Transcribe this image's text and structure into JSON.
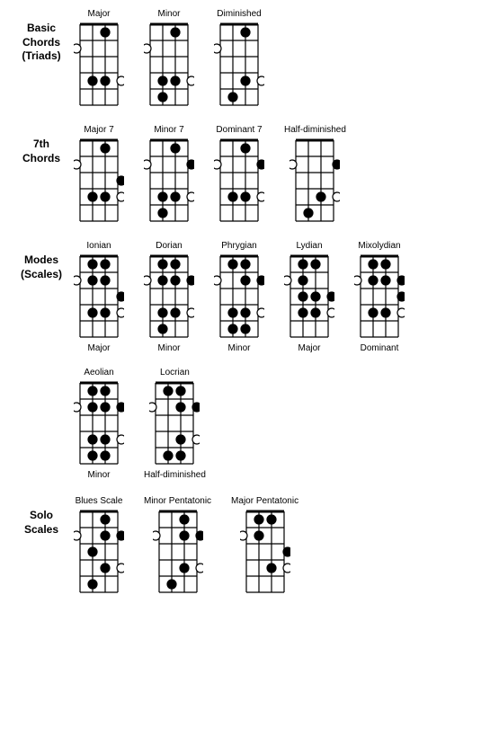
{
  "style": {
    "strings": 4,
    "frets": 5,
    "stringSpacing": 14,
    "fretSpacing": 18,
    "dotRadius": 5,
    "lineColor": "#000000",
    "lineWidth": 1.2,
    "nutWidth": 3,
    "openDotFill": "#ffffff",
    "filledDotFill": "#000000",
    "dotStroke": "#000000",
    "dotStrokeWidth": 1.2,
    "padX": 7,
    "topPad": 2
  },
  "sections": [
    {
      "label": "Basic\nChords\n(Triads)",
      "twoRow": false,
      "diagrams": [
        {
          "title": "Major",
          "sub": null,
          "dots": [
            {
              "string": 2,
              "fret": 1,
              "filled": true
            },
            {
              "string": 0,
              "fret": 2,
              "filled": false,
              "side": "left"
            },
            {
              "string": 1,
              "fret": 4,
              "filled": true
            },
            {
              "string": 2,
              "fret": 4,
              "filled": true
            },
            {
              "string": 3,
              "fret": 4,
              "filled": false,
              "side": "right"
            }
          ]
        },
        {
          "title": "Minor",
          "sub": null,
          "dots": [
            {
              "string": 2,
              "fret": 1,
              "filled": true
            },
            {
              "string": 0,
              "fret": 2,
              "filled": false,
              "side": "left"
            },
            {
              "string": 1,
              "fret": 4,
              "filled": true
            },
            {
              "string": 2,
              "fret": 4,
              "filled": true
            },
            {
              "string": 3,
              "fret": 4,
              "filled": false,
              "side": "right"
            },
            {
              "string": 1,
              "fret": 5,
              "filled": true
            }
          ]
        },
        {
          "title": "Diminished",
          "sub": null,
          "dots": [
            {
              "string": 2,
              "fret": 1,
              "filled": true
            },
            {
              "string": 0,
              "fret": 2,
              "filled": false,
              "side": "left"
            },
            {
              "string": 2,
              "fret": 4,
              "filled": true
            },
            {
              "string": 3,
              "fret": 4,
              "filled": false,
              "side": "right"
            },
            {
              "string": 1,
              "fret": 5,
              "filled": true
            }
          ]
        }
      ]
    },
    {
      "label": "7th\nChords",
      "twoRow": false,
      "diagrams": [
        {
          "title": "Major 7",
          "sub": null,
          "dots": [
            {
              "string": 2,
              "fret": 1,
              "filled": true
            },
            {
              "string": 0,
              "fret": 2,
              "filled": false,
              "side": "left"
            },
            {
              "string": 3,
              "fret": 3,
              "filled": true,
              "side": "right"
            },
            {
              "string": 1,
              "fret": 4,
              "filled": true
            },
            {
              "string": 2,
              "fret": 4,
              "filled": true
            },
            {
              "string": 3,
              "fret": 4,
              "filled": false,
              "side": "right"
            }
          ]
        },
        {
          "title": "Minor 7",
          "sub": null,
          "dots": [
            {
              "string": 2,
              "fret": 1,
              "filled": true
            },
            {
              "string": 0,
              "fret": 2,
              "filled": false,
              "side": "left"
            },
            {
              "string": 3,
              "fret": 2,
              "filled": true,
              "side": "right"
            },
            {
              "string": 1,
              "fret": 4,
              "filled": true
            },
            {
              "string": 2,
              "fret": 4,
              "filled": true
            },
            {
              "string": 3,
              "fret": 4,
              "filled": false,
              "side": "right"
            },
            {
              "string": 1,
              "fret": 5,
              "filled": true
            }
          ]
        },
        {
          "title": "Dominant 7",
          "sub": null,
          "dots": [
            {
              "string": 2,
              "fret": 1,
              "filled": true
            },
            {
              "string": 0,
              "fret": 2,
              "filled": false,
              "side": "left"
            },
            {
              "string": 3,
              "fret": 2,
              "filled": true,
              "side": "right"
            },
            {
              "string": 1,
              "fret": 4,
              "filled": true
            },
            {
              "string": 2,
              "fret": 4,
              "filled": true
            },
            {
              "string": 3,
              "fret": 4,
              "filled": false,
              "side": "right"
            }
          ]
        },
        {
          "title": "Half-diminished",
          "sub": null,
          "dots": [
            {
              "string": 0,
              "fret": 2,
              "filled": false,
              "side": "left"
            },
            {
              "string": 3,
              "fret": 2,
              "filled": true,
              "side": "right"
            },
            {
              "string": 2,
              "fret": 4,
              "filled": true
            },
            {
              "string": 3,
              "fret": 4,
              "filled": false,
              "side": "right"
            },
            {
              "string": 1,
              "fret": 5,
              "filled": true
            }
          ]
        }
      ]
    },
    {
      "label": "Modes\n(Scales)",
      "twoRow": true,
      "diagrams": [
        {
          "title": "Ionian",
          "sub": "Major",
          "dots": [
            {
              "string": 1,
              "fret": 1,
              "filled": true
            },
            {
              "string": 2,
              "fret": 1,
              "filled": true
            },
            {
              "string": 0,
              "fret": 2,
              "filled": false,
              "side": "left"
            },
            {
              "string": 1,
              "fret": 2,
              "filled": true
            },
            {
              "string": 2,
              "fret": 2,
              "filled": true
            },
            {
              "string": 3,
              "fret": 3,
              "filled": true,
              "side": "right"
            },
            {
              "string": 1,
              "fret": 4,
              "filled": true
            },
            {
              "string": 2,
              "fret": 4,
              "filled": true
            },
            {
              "string": 3,
              "fret": 4,
              "filled": false,
              "side": "right"
            }
          ]
        },
        {
          "title": "Dorian",
          "sub": "Minor",
          "dots": [
            {
              "string": 1,
              "fret": 1,
              "filled": true
            },
            {
              "string": 2,
              "fret": 1,
              "filled": true
            },
            {
              "string": 0,
              "fret": 2,
              "filled": false,
              "side": "left"
            },
            {
              "string": 1,
              "fret": 2,
              "filled": true
            },
            {
              "string": 2,
              "fret": 2,
              "filled": true
            },
            {
              "string": 3,
              "fret": 2,
              "filled": true,
              "side": "right"
            },
            {
              "string": 1,
              "fret": 4,
              "filled": true
            },
            {
              "string": 2,
              "fret": 4,
              "filled": true
            },
            {
              "string": 3,
              "fret": 4,
              "filled": false,
              "side": "right"
            },
            {
              "string": 1,
              "fret": 5,
              "filled": true
            }
          ]
        },
        {
          "title": "Phrygian",
          "sub": "Minor",
          "dots": [
            {
              "string": 1,
              "fret": 1,
              "filled": true
            },
            {
              "string": 2,
              "fret": 1,
              "filled": true
            },
            {
              "string": 0,
              "fret": 2,
              "filled": false,
              "side": "left"
            },
            {
              "string": 2,
              "fret": 2,
              "filled": true
            },
            {
              "string": 3,
              "fret": 2,
              "filled": true,
              "side": "right"
            },
            {
              "string": 1,
              "fret": 4,
              "filled": true
            },
            {
              "string": 2,
              "fret": 4,
              "filled": true
            },
            {
              "string": 3,
              "fret": 4,
              "filled": false,
              "side": "right"
            },
            {
              "string": 1,
              "fret": 5,
              "filled": true
            },
            {
              "string": 2,
              "fret": 5,
              "filled": true
            }
          ]
        },
        {
          "title": "Lydian",
          "sub": "Major",
          "dots": [
            {
              "string": 1,
              "fret": 1,
              "filled": true
            },
            {
              "string": 2,
              "fret": 1,
              "filled": true
            },
            {
              "string": 0,
              "fret": 2,
              "filled": false,
              "side": "left"
            },
            {
              "string": 1,
              "fret": 2,
              "filled": true
            },
            {
              "string": 1,
              "fret": 3,
              "filled": true
            },
            {
              "string": 2,
              "fret": 3,
              "filled": true
            },
            {
              "string": 3,
              "fret": 3,
              "filled": true,
              "side": "right"
            },
            {
              "string": 1,
              "fret": 4,
              "filled": true
            },
            {
              "string": 2,
              "fret": 4,
              "filled": true
            },
            {
              "string": 3,
              "fret": 4,
              "filled": false,
              "side": "right"
            }
          ]
        },
        {
          "title": "Mixolydian",
          "sub": "Dominant",
          "dots": [
            {
              "string": 1,
              "fret": 1,
              "filled": true
            },
            {
              "string": 2,
              "fret": 1,
              "filled": true
            },
            {
              "string": 0,
              "fret": 2,
              "filled": false,
              "side": "left"
            },
            {
              "string": 1,
              "fret": 2,
              "filled": true
            },
            {
              "string": 2,
              "fret": 2,
              "filled": true
            },
            {
              "string": 3,
              "fret": 2,
              "filled": true,
              "side": "right"
            },
            {
              "string": 3,
              "fret": 3,
              "filled": true,
              "side": "right"
            },
            {
              "string": 1,
              "fret": 4,
              "filled": true
            },
            {
              "string": 2,
              "fret": 4,
              "filled": true
            },
            {
              "string": 3,
              "fret": 4,
              "filled": false,
              "side": "right"
            }
          ]
        },
        {
          "title": "Aeolian",
          "sub": "Minor",
          "dots": [
            {
              "string": 1,
              "fret": 1,
              "filled": true
            },
            {
              "string": 2,
              "fret": 1,
              "filled": true
            },
            {
              "string": 0,
              "fret": 2,
              "filled": false,
              "side": "left"
            },
            {
              "string": 1,
              "fret": 2,
              "filled": true
            },
            {
              "string": 2,
              "fret": 2,
              "filled": true
            },
            {
              "string": 3,
              "fret": 2,
              "filled": true,
              "side": "right"
            },
            {
              "string": 1,
              "fret": 4,
              "filled": true
            },
            {
              "string": 2,
              "fret": 4,
              "filled": true
            },
            {
              "string": 3,
              "fret": 4,
              "filled": false,
              "side": "right"
            },
            {
              "string": 1,
              "fret": 5,
              "filled": true
            },
            {
              "string": 2,
              "fret": 5,
              "filled": true
            }
          ]
        },
        {
          "title": "Locrian",
          "sub": "Half-diminished",
          "dots": [
            {
              "string": 1,
              "fret": 1,
              "filled": true
            },
            {
              "string": 2,
              "fret": 1,
              "filled": true
            },
            {
              "string": 0,
              "fret": 2,
              "filled": false,
              "side": "left"
            },
            {
              "string": 2,
              "fret": 2,
              "filled": true
            },
            {
              "string": 3,
              "fret": 2,
              "filled": true,
              "side": "right"
            },
            {
              "string": 2,
              "fret": 4,
              "filled": true
            },
            {
              "string": 3,
              "fret": 4,
              "filled": false,
              "side": "right"
            },
            {
              "string": 1,
              "fret": 5,
              "filled": true
            },
            {
              "string": 2,
              "fret": 5,
              "filled": true
            }
          ]
        }
      ]
    },
    {
      "label": "Solo\nScales",
      "twoRow": false,
      "diagrams": [
        {
          "title": "Blues Scale",
          "sub": null,
          "dots": [
            {
              "string": 2,
              "fret": 1,
              "filled": true
            },
            {
              "string": 0,
              "fret": 2,
              "filled": false,
              "side": "left"
            },
            {
              "string": 2,
              "fret": 2,
              "filled": true
            },
            {
              "string": 3,
              "fret": 2,
              "filled": true,
              "side": "right"
            },
            {
              "string": 1,
              "fret": 3,
              "filled": true
            },
            {
              "string": 2,
              "fret": 4,
              "filled": true
            },
            {
              "string": 3,
              "fret": 4,
              "filled": false,
              "side": "right"
            },
            {
              "string": 1,
              "fret": 5,
              "filled": true
            }
          ]
        },
        {
          "title": "Minor Pentatonic",
          "sub": null,
          "dots": [
            {
              "string": 2,
              "fret": 1,
              "filled": true
            },
            {
              "string": 0,
              "fret": 2,
              "filled": false,
              "side": "left"
            },
            {
              "string": 2,
              "fret": 2,
              "filled": true
            },
            {
              "string": 3,
              "fret": 2,
              "filled": true,
              "side": "right"
            },
            {
              "string": 2,
              "fret": 4,
              "filled": true
            },
            {
              "string": 3,
              "fret": 4,
              "filled": false,
              "side": "right"
            },
            {
              "string": 1,
              "fret": 5,
              "filled": true
            }
          ]
        },
        {
          "title": "Major Pentatonic",
          "sub": null,
          "dots": [
            {
              "string": 1,
              "fret": 1,
              "filled": true
            },
            {
              "string": 2,
              "fret": 1,
              "filled": true
            },
            {
              "string": 0,
              "fret": 2,
              "filled": false,
              "side": "left"
            },
            {
              "string": 1,
              "fret": 2,
              "filled": true
            },
            {
              "string": 2,
              "fret": 4,
              "filled": true
            },
            {
              "string": 3,
              "fret": 3,
              "filled": true,
              "side": "right"
            },
            {
              "string": 3,
              "fret": 4,
              "filled": false,
              "side": "right"
            }
          ]
        }
      ]
    }
  ]
}
